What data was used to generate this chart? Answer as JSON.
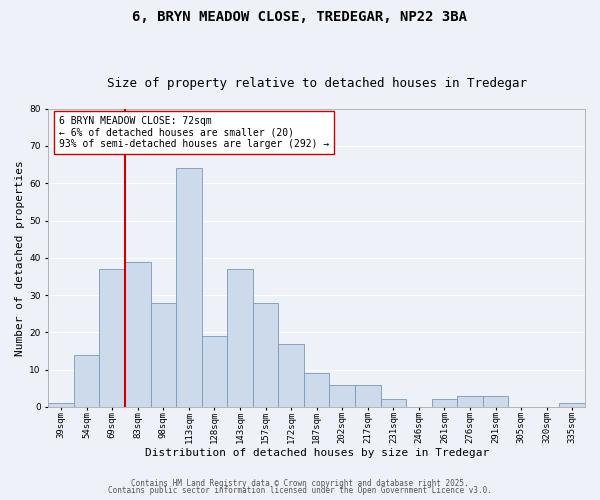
{
  "title": "6, BRYN MEADOW CLOSE, TREDEGAR, NP22 3BA",
  "subtitle": "Size of property relative to detached houses in Tredegar",
  "xlabel": "Distribution of detached houses by size in Tredegar",
  "ylabel": "Number of detached properties",
  "bar_color": "#cddaeb",
  "bar_edge_color": "#7799bb",
  "background_color": "#eef2f8",
  "grid_color": "#ffffff",
  "bin_labels": [
    "39sqm",
    "54sqm",
    "69sqm",
    "83sqm",
    "98sqm",
    "113sqm",
    "128sqm",
    "143sqm",
    "157sqm",
    "172sqm",
    "187sqm",
    "202sqm",
    "217sqm",
    "231sqm",
    "246sqm",
    "261sqm",
    "276sqm",
    "291sqm",
    "305sqm",
    "320sqm",
    "335sqm"
  ],
  "bar_heights": [
    1,
    14,
    37,
    39,
    28,
    64,
    19,
    37,
    28,
    17,
    9,
    6,
    6,
    2,
    0,
    2,
    3,
    3,
    0,
    0,
    1
  ],
  "ylim": [
    0,
    80
  ],
  "yticks": [
    0,
    10,
    20,
    30,
    40,
    50,
    60,
    70,
    80
  ],
  "vline_x_index": 2,
  "vline_color": "#cc0000",
  "annotation_title": "6 BRYN MEADOW CLOSE: 72sqm",
  "annotation_line1": "← 6% of detached houses are smaller (20)",
  "annotation_line2": "93% of semi-detached houses are larger (292) →",
  "annotation_box_color": "white",
  "annotation_box_edge": "#cc0000",
  "footer_line1": "Contains HM Land Registry data © Crown copyright and database right 2025.",
  "footer_line2": "Contains public sector information licensed under the Open Government Licence v3.0.",
  "title_fontsize": 10,
  "subtitle_fontsize": 9,
  "tick_fontsize": 6.5,
  "axis_label_fontsize": 8,
  "annotation_fontsize": 7,
  "footer_fontsize": 5.5
}
